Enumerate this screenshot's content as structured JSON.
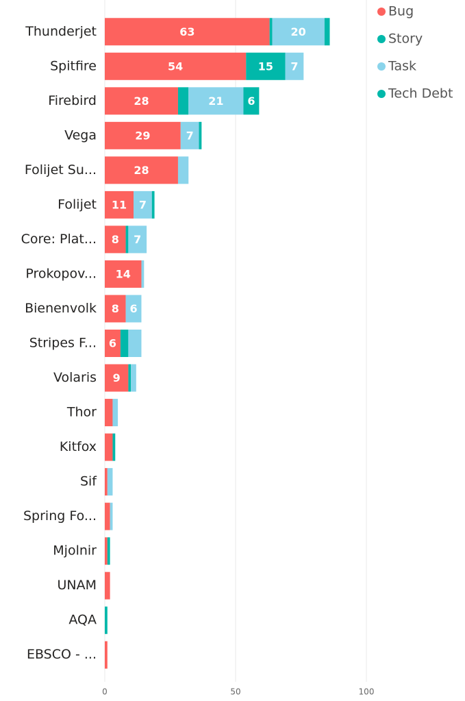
{
  "chart_data": {
    "type": "stacked-bar-horizontal",
    "categories": [
      "Thunderjet",
      "Spitfire",
      "Firebird",
      "Vega",
      "Folijet Su...",
      "Folijet",
      "Core: Plat...",
      "Prokopov...",
      "Bienenvolk",
      "Stripes F...",
      "Volaris",
      "Thor",
      "Kitfox",
      "Sif",
      "Spring Fo...",
      "Mjolnir",
      "UNAM",
      "AQA",
      "EBSCO - ..."
    ],
    "series": [
      {
        "name": "Bug",
        "color": "#fd625e",
        "values": [
          63,
          54,
          28,
          29,
          28,
          11,
          8,
          14,
          8,
          6,
          9,
          3,
          3,
          1,
          2,
          1,
          2,
          0,
          1
        ]
      },
      {
        "name": "Story",
        "color": "#01b8aa",
        "values": [
          1,
          15,
          4,
          0,
          0,
          0,
          1,
          0,
          0,
          3,
          1,
          0,
          0,
          0,
          0,
          1,
          0,
          1,
          0
        ]
      },
      {
        "name": "Task",
        "color": "#8ad4eb",
        "values": [
          20,
          7,
          21,
          7,
          4,
          7,
          7,
          1,
          6,
          5,
          2,
          2,
          0,
          2,
          1,
          0,
          0,
          0,
          0
        ]
      },
      {
        "name": "Tech Debt",
        "color": "#01b8aa",
        "values": [
          2,
          0,
          6,
          1,
          0,
          1,
          0,
          0,
          0,
          0,
          0,
          0,
          1,
          0,
          0,
          0,
          0,
          0,
          0
        ]
      }
    ],
    "xlim": [
      0,
      100
    ],
    "xticks": [
      0,
      50,
      100
    ],
    "grid": true,
    "legend": "top-right"
  }
}
